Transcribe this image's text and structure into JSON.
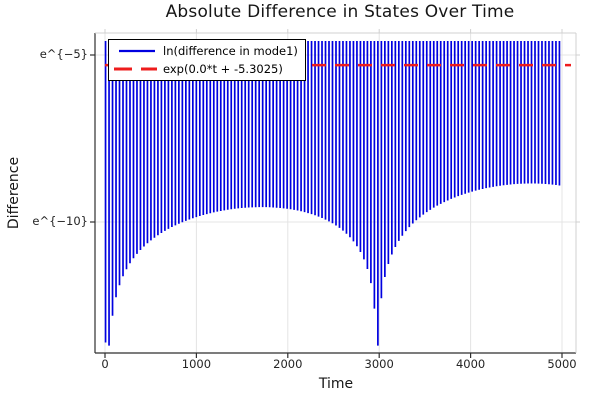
{
  "figure": {
    "background": "#ffffff",
    "frame_color_dark": "#2f2f2f",
    "frame_color_light": "#d0d0d0",
    "grid_color": "#e4e4e4"
  },
  "chart_data": {
    "type": "line",
    "title": "Absolute Difference in States Over Time",
    "xlabel": "Time",
    "ylabel": "Difference",
    "x_ticks": [
      0,
      1000,
      2000,
      3000,
      4000,
      5000
    ],
    "y_ticks": [
      {
        "label": "e^{−5}",
        "ln": -5
      },
      {
        "label": "e^{−10}",
        "ln": -10
      }
    ],
    "y_scale": "ln",
    "xlim": [
      -110,
      5190
    ],
    "ylim_ln": [
      -13.95,
      -4.32
    ],
    "grid": true,
    "legend_position": "top-left",
    "series": [
      {
        "name": "ln(difference in mode1)",
        "color": "#0000e0",
        "style": "solid",
        "render": "dense_vertical_oscillation",
        "period_t": 38.2,
        "t_start": 6,
        "t_end": 5000,
        "top_envelope_ln": -4.58,
        "bottom_envelope": {
          "model": "base + ln(|sin(pi*(t-t0)/T)|)",
          "t0": 30,
          "T": 2950,
          "base_mid_ln": -9.58,
          "base_slope": 0.00024,
          "min_ln": -13.7,
          "cusp_times": [
            30,
            2980
          ]
        }
      },
      {
        "name": "exp(0.0*t + -5.3025)",
        "color": "#ee1c1c",
        "style": "dashed",
        "constant_ln": -5.3025
      }
    ]
  }
}
